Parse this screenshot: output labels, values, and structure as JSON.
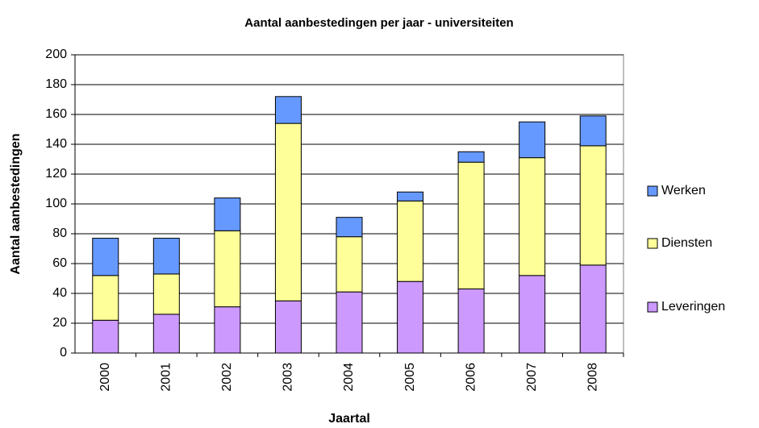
{
  "chart_data": {
    "type": "stacked_bar",
    "title": "Aantal aanbestedingen per jaar - universiteiten",
    "x_label": "Jaartal",
    "y_label": "Aantal aanbestedingen",
    "categories": [
      "2000",
      "2001",
      "2002",
      "2003",
      "2004",
      "2005",
      "2006",
      "2007",
      "2008"
    ],
    "series": [
      {
        "name": "Leveringen",
        "color": "#cc99ff",
        "values": [
          22,
          26,
          31,
          35,
          41,
          48,
          43,
          52,
          59
        ]
      },
      {
        "name": "Diensten",
        "color": "#ffff99",
        "values": [
          30,
          27,
          51,
          119,
          37,
          54,
          85,
          79,
          80
        ]
      },
      {
        "name": "Werken",
        "color": "#6699ff",
        "values": [
          25,
          24,
          22,
          18,
          13,
          6,
          7,
          24,
          20
        ]
      }
    ],
    "ylim": [
      0,
      200
    ],
    "yticks": [
      0,
      20,
      40,
      60,
      80,
      100,
      120,
      140,
      160,
      180,
      200
    ],
    "grid": true,
    "legend": "right"
  }
}
